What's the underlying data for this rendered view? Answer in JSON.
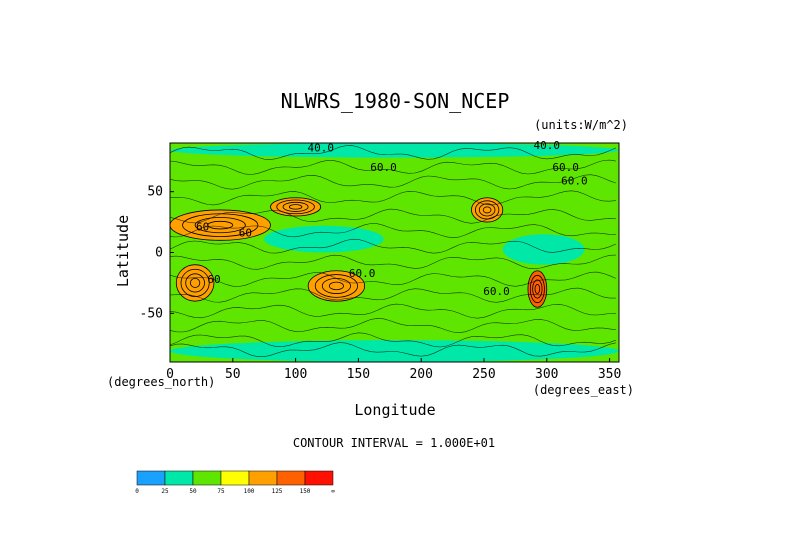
{
  "chart_data": {
    "type": "heatmap",
    "title": "NLWRS_1980-SON_NCEP",
    "units": "(units:W/m^2)",
    "xlabel": "Longitude",
    "ylabel": "Latitude",
    "xunit": "(degrees_east)",
    "yunit": "(degrees_north)",
    "xlim": [
      0,
      357.5
    ],
    "ylim": [
      -90,
      90
    ],
    "xticks": [
      0,
      50,
      100,
      150,
      200,
      250,
      300,
      350
    ],
    "yticks": [
      50,
      0,
      -50
    ],
    "contour_interval": "CONTOUR INTERVAL = 1.000E+01",
    "contour_labels": [
      {
        "text": "40.0",
        "lon": 120,
        "lat": 83
      },
      {
        "text": "60.0",
        "lon": 170,
        "lat": 67
      },
      {
        "text": "40.0",
        "lon": 300,
        "lat": 85
      },
      {
        "text": "60.0",
        "lon": 315,
        "lat": 67
      },
      {
        "text": "60.0",
        "lon": 322,
        "lat": 56
      },
      {
        "text": "60",
        "lon": 60,
        "lat": 13
      },
      {
        "text": "60",
        "lon": 26,
        "lat": 18
      },
      {
        "text": "60.0",
        "lon": 153,
        "lat": -20
      },
      {
        "text": "60",
        "lon": 35,
        "lat": -25
      },
      {
        "text": "60.0",
        "lon": 260,
        "lat": -35
      }
    ],
    "colorbar": {
      "levels": [
        "0",
        "25",
        "50",
        "75",
        "100",
        "125",
        "150",
        "∞"
      ],
      "colors": [
        "#1aa0ff",
        "#00e8a8",
        "#5ee600",
        "#ffff00",
        "#ffa000",
        "#ff6000",
        "#ff1000"
      ]
    },
    "regions": [
      {
        "lon": [
          0,
          357.5
        ],
        "lat": [
          -90,
          90
        ],
        "band": "50-75"
      },
      {
        "lon": [
          0,
          357.5
        ],
        "lat": [
          78,
          90
        ],
        "band": "25-50"
      },
      {
        "lon": [
          0,
          357.5
        ],
        "lat": [
          -90,
          -72
        ],
        "band": "25-50"
      },
      {
        "lon": [
          75,
          170
        ],
        "lat": [
          0,
          22
        ],
        "band": "25-50"
      },
      {
        "lon": [
          265,
          330
        ],
        "lat": [
          -10,
          15
        ],
        "band": "25-50"
      },
      {
        "lon": [
          0,
          80
        ],
        "lat": [
          10,
          35
        ],
        "band": "100-125"
      },
      {
        "lon": [
          80,
          120
        ],
        "lat": [
          30,
          45
        ],
        "band": "100-125"
      },
      {
        "lon": [
          240,
          265
        ],
        "lat": [
          25,
          45
        ],
        "band": "100-125"
      },
      {
        "lon": [
          5,
          35
        ],
        "lat": [
          -40,
          -10
        ],
        "band": "100-125"
      },
      {
        "lon": [
          110,
          155
        ],
        "lat": [
          -40,
          -15
        ],
        "band": "100-125"
      },
      {
        "lon": [
          285,
          300
        ],
        "lat": [
          -45,
          -15
        ],
        "band": "125-150"
      }
    ]
  }
}
